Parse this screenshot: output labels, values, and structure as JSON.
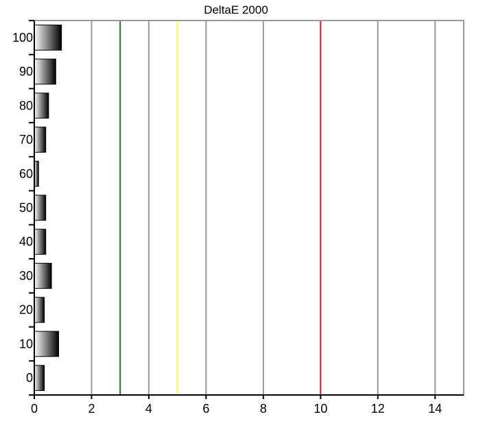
{
  "chart_data": {
    "type": "bar",
    "orientation": "horizontal",
    "title": "DeltaE 2000",
    "xlabel": "",
    "ylabel": "",
    "xlim": [
      0,
      15
    ],
    "x_ticks": [
      0,
      2,
      4,
      6,
      8,
      10,
      12,
      14
    ],
    "x_tick_labels": [
      "0",
      "2",
      "4",
      "6",
      "8",
      "10",
      "12",
      "14"
    ],
    "categories": [
      "0",
      "10",
      "20",
      "30",
      "40",
      "50",
      "60",
      "70",
      "80",
      "90",
      "100"
    ],
    "values": [
      0.35,
      0.85,
      0.35,
      0.6,
      0.4,
      0.4,
      0.15,
      0.4,
      0.5,
      0.75,
      0.95
    ],
    "threshold_lines": [
      {
        "value": 3,
        "color": "#1a7a1a"
      },
      {
        "value": 5,
        "color": "#ffff33"
      },
      {
        "value": 10,
        "color": "#e02020"
      }
    ],
    "grid": true,
    "bar_fill": "horizontal gradient white to black",
    "legend": "none"
  }
}
